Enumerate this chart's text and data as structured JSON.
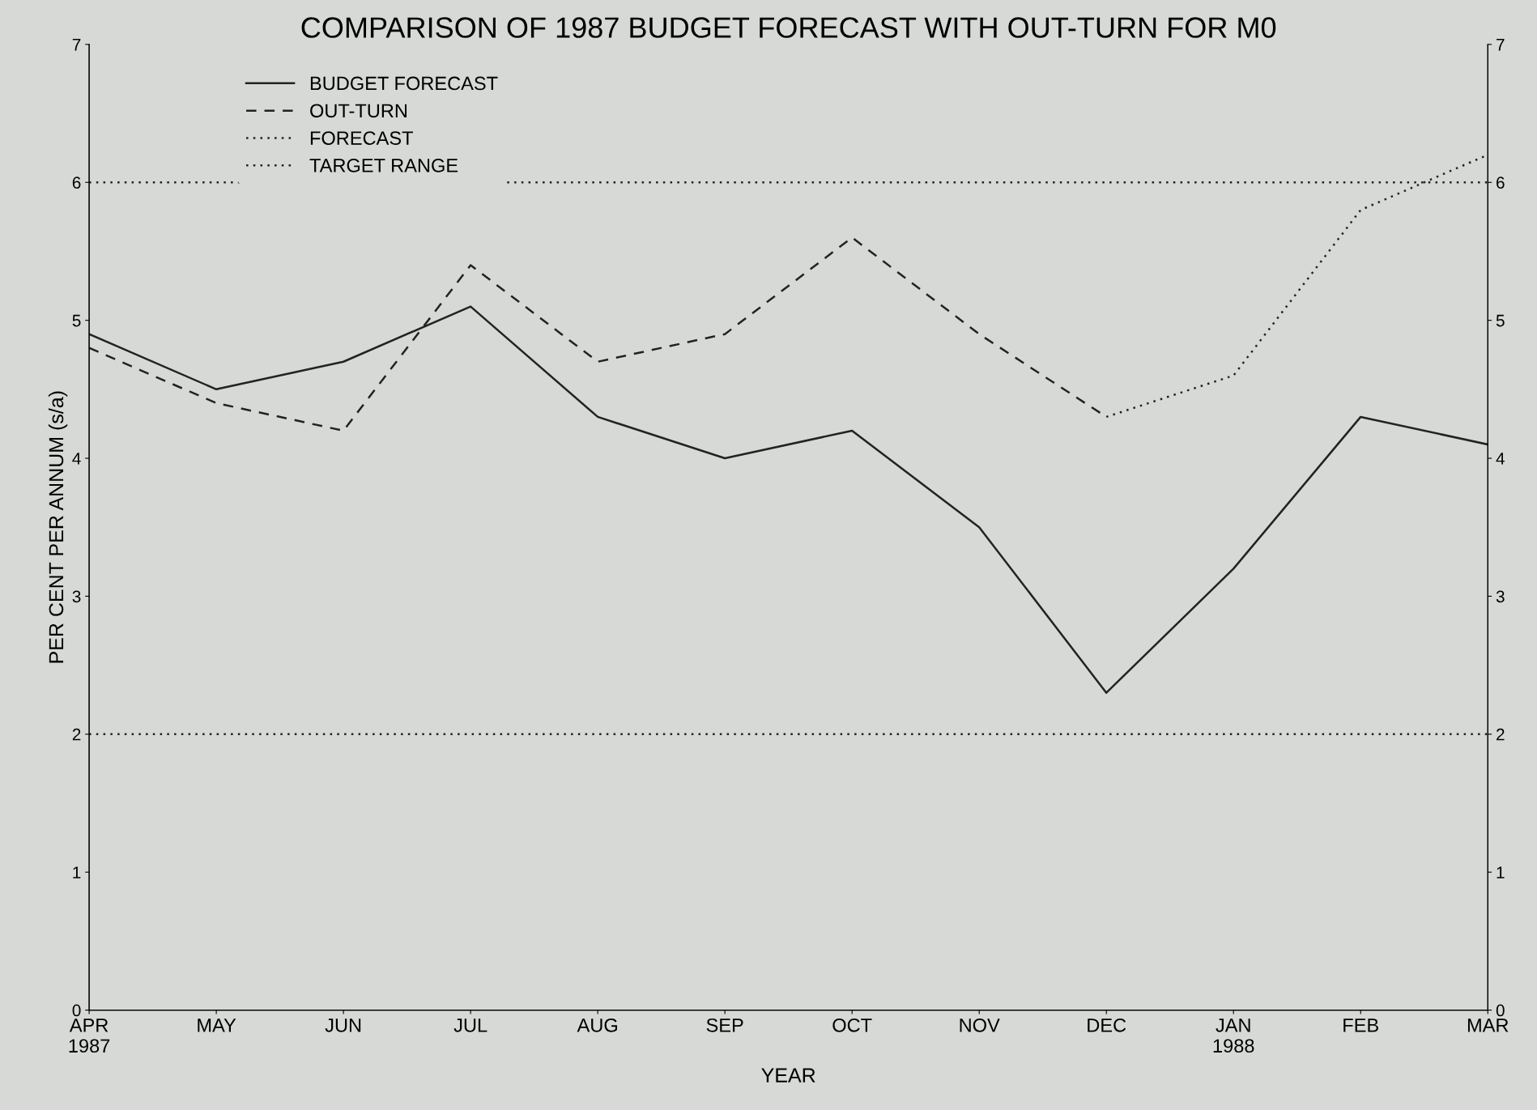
{
  "chart_data": {
    "type": "line",
    "title": "COMPARISON OF 1987 BUDGET FORECAST WITH OUT-TURN FOR M0",
    "xlabel": "YEAR",
    "ylabel": "PER CENT PER ANNUM (s/a)",
    "categories": [
      "APR\n1987",
      "MAY",
      "JUN",
      "JUL",
      "AUG",
      "SEP",
      "OCT",
      "NOV",
      "DEC",
      "JAN\n1988",
      "FEB",
      "MAR"
    ],
    "series": [
      {
        "name": "BUDGET FORECAST",
        "color": "#222222",
        "line_style": "solid",
        "values": [
          4.9,
          4.5,
          4.7,
          5.1,
          4.3,
          4.0,
          4.2,
          3.5,
          2.3,
          3.2,
          4.3,
          4.1
        ]
      },
      {
        "name": "OUT-TURN",
        "color": "#222222",
        "line_style": "dashed",
        "values": [
          4.8,
          4.4,
          4.2,
          5.4,
          4.7,
          4.9,
          5.6,
          4.9,
          4.3,
          null,
          null,
          null
        ]
      },
      {
        "name": "FORECAST",
        "color": "#222222",
        "line_style": "dotted",
        "values": [
          null,
          null,
          null,
          null,
          null,
          null,
          null,
          null,
          4.3,
          4.6,
          5.8,
          6.2
        ]
      }
    ],
    "ref_lines": [
      {
        "axis": "y",
        "value": 6,
        "label": "TARGET RANGE",
        "color": "#222222",
        "line_style": "dotted"
      },
      {
        "axis": "y",
        "value": 2,
        "color": "#222222",
        "line_style": "dotted"
      }
    ],
    "ylim": [
      0,
      7
    ],
    "yticks": [
      0,
      1,
      2,
      3,
      4,
      5,
      6,
      7
    ],
    "y2lim": [
      0,
      7
    ],
    "y2ticks": [
      0,
      1,
      2,
      3,
      4,
      5,
      6,
      7
    ],
    "grid": false,
    "legend": "top left",
    "marker": "none"
  }
}
